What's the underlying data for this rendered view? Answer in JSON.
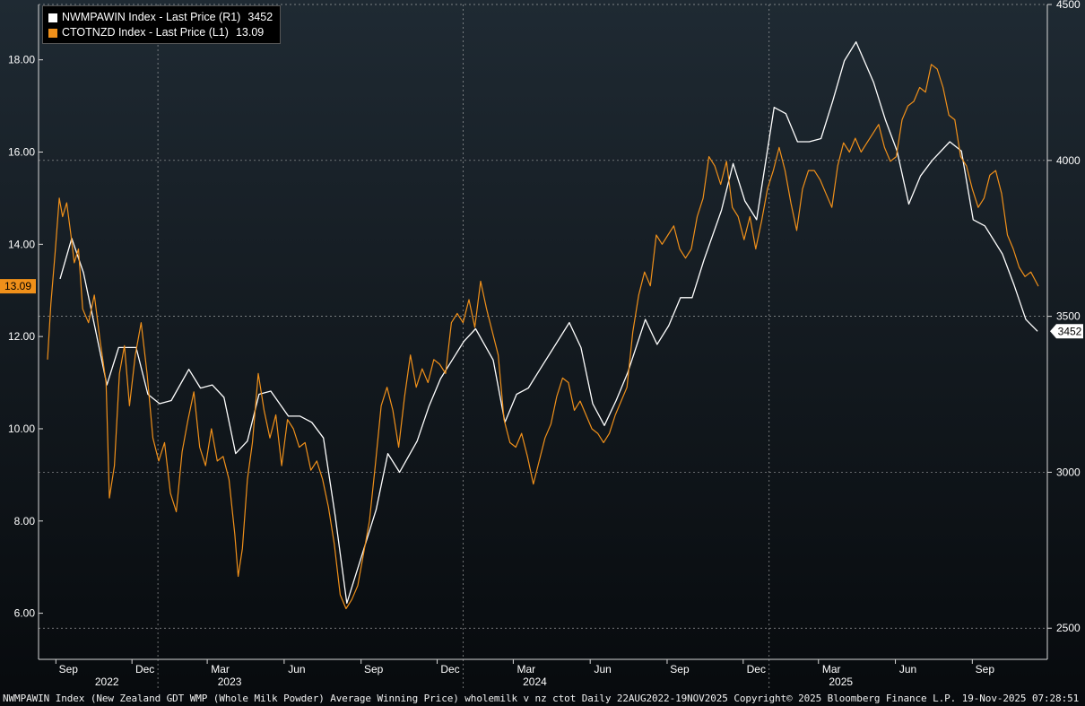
{
  "footer_text": "NWMPAWIN Index (New Zealand GDT WMP (Whole Milk Powder) Average Winning Price) wholemilk v nz ctot Daily 22AUG2022-19NOV2025 Copyright© 2025 Bloomberg Finance L.P. 19-Nov-2025 07:28:51",
  "legend": [
    {
      "label": "NWMPAWIN Index - Last Price (R1)",
      "value": "3452",
      "color": "#ffffff"
    },
    {
      "label": "CTOTNZD Index - Last Price (L1)",
      "value": "13.09",
      "color": "#f0901a"
    }
  ],
  "tags": {
    "left": "13.09",
    "right": "3452"
  },
  "chart_data": {
    "type": "line",
    "left_axis": {
      "ticks": [
        "6.00",
        "8.00",
        "10.00",
        "12.00",
        "14.00",
        "16.00",
        "18.00"
      ],
      "ylim": [
        5.0,
        19.2
      ]
    },
    "right_axis": {
      "ticks": [
        "2500",
        "3000",
        "3500",
        "4000",
        "4500"
      ],
      "ylim": [
        2400,
        4500
      ]
    },
    "x_months": [
      "Sep",
      "Dec",
      "Mar",
      "Jun",
      "Sep",
      "Dec",
      "Mar",
      "Jun",
      "Sep",
      "Dec",
      "Mar",
      "Jun",
      "Sep"
    ],
    "x_years": [
      "2022",
      "2023",
      "2024",
      "2025"
    ],
    "x_range": [
      "2022-08-22",
      "2025-11-19"
    ],
    "series": [
      {
        "name": "NWMPAWIN Index - Last Price (R1)",
        "axis": "right",
        "color": "#ffffff",
        "points": [
          [
            "2022-09-06",
            3620
          ],
          [
            "2022-09-20",
            3750
          ],
          [
            "2022-10-04",
            3640
          ],
          [
            "2022-10-18",
            3460
          ],
          [
            "2022-11-01",
            3280
          ],
          [
            "2022-11-15",
            3400
          ],
          [
            "2022-12-06",
            3400
          ],
          [
            "2022-12-20",
            3250
          ],
          [
            "2023-01-03",
            3220
          ],
          [
            "2023-01-17",
            3230
          ],
          [
            "2023-02-07",
            3330
          ],
          [
            "2023-02-21",
            3270
          ],
          [
            "2023-03-07",
            3280
          ],
          [
            "2023-03-21",
            3240
          ],
          [
            "2023-04-04",
            3060
          ],
          [
            "2023-04-18",
            3100
          ],
          [
            "2023-05-02",
            3250
          ],
          [
            "2023-05-16",
            3260
          ],
          [
            "2023-06-06",
            3180
          ],
          [
            "2023-06-20",
            3180
          ],
          [
            "2023-07-04",
            3160
          ],
          [
            "2023-07-18",
            3110
          ],
          [
            "2023-08-01",
            2860
          ],
          [
            "2023-08-15",
            2580
          ],
          [
            "2023-09-05",
            2760
          ],
          [
            "2023-09-19",
            2880
          ],
          [
            "2023-10-03",
            3060
          ],
          [
            "2023-10-17",
            3000
          ],
          [
            "2023-11-07",
            3100
          ],
          [
            "2023-11-21",
            3210
          ],
          [
            "2023-12-05",
            3300
          ],
          [
            "2023-12-19",
            3360
          ],
          [
            "2024-01-02",
            3420
          ],
          [
            "2024-01-16",
            3460
          ],
          [
            "2024-02-06",
            3360
          ],
          [
            "2024-02-20",
            3160
          ],
          [
            "2024-03-05",
            3250
          ],
          [
            "2024-03-19",
            3270
          ],
          [
            "2024-04-02",
            3330
          ],
          [
            "2024-04-16",
            3390
          ],
          [
            "2024-05-07",
            3480
          ],
          [
            "2024-05-21",
            3400
          ],
          [
            "2024-06-04",
            3220
          ],
          [
            "2024-06-18",
            3150
          ],
          [
            "2024-07-02",
            3230
          ],
          [
            "2024-07-16",
            3320
          ],
          [
            "2024-08-06",
            3490
          ],
          [
            "2024-08-20",
            3410
          ],
          [
            "2024-09-03",
            3470
          ],
          [
            "2024-09-17",
            3560
          ],
          [
            "2024-10-01",
            3560
          ],
          [
            "2024-10-15",
            3680
          ],
          [
            "2024-11-05",
            3840
          ],
          [
            "2024-11-19",
            3990
          ],
          [
            "2024-12-03",
            3870
          ],
          [
            "2024-12-17",
            3810
          ],
          [
            "2025-01-07",
            4170
          ],
          [
            "2025-01-21",
            4150
          ],
          [
            "2025-02-04",
            4060
          ],
          [
            "2025-02-18",
            4060
          ],
          [
            "2025-03-04",
            4070
          ],
          [
            "2025-03-18",
            4190
          ],
          [
            "2025-04-01",
            4320
          ],
          [
            "2025-04-15",
            4380
          ],
          [
            "2025-05-06",
            4250
          ],
          [
            "2025-05-20",
            4130
          ],
          [
            "2025-06-03",
            4030
          ],
          [
            "2025-06-17",
            3860
          ],
          [
            "2025-07-01",
            3950
          ],
          [
            "2025-07-15",
            4000
          ],
          [
            "2025-08-05",
            4060
          ],
          [
            "2025-08-19",
            4030
          ],
          [
            "2025-09-02",
            3810
          ],
          [
            "2025-09-16",
            3790
          ],
          [
            "2025-10-07",
            3700
          ],
          [
            "2025-10-21",
            3600
          ],
          [
            "2025-11-04",
            3490
          ],
          [
            "2025-11-18",
            3452
          ]
        ]
      },
      {
        "name": "CTOTNZD Index - Last Price (L1)",
        "axis": "left",
        "color": "#f0901a",
        "points": [
          [
            "2022-08-22",
            11.5
          ],
          [
            "2022-08-26",
            12.7
          ],
          [
            "2022-08-31",
            13.8
          ],
          [
            "2022-09-05",
            15.0
          ],
          [
            "2022-09-09",
            14.6
          ],
          [
            "2022-09-14",
            14.9
          ],
          [
            "2022-09-19",
            14.2
          ],
          [
            "2022-09-23",
            13.6
          ],
          [
            "2022-09-28",
            13.9
          ],
          [
            "2022-10-03",
            12.6
          ],
          [
            "2022-10-10",
            12.3
          ],
          [
            "2022-10-17",
            12.9
          ],
          [
            "2022-10-24",
            11.9
          ],
          [
            "2022-10-31",
            11.0
          ],
          [
            "2022-11-04",
            8.5
          ],
          [
            "2022-11-10",
            9.2
          ],
          [
            "2022-11-16",
            11.2
          ],
          [
            "2022-11-22",
            11.8
          ],
          [
            "2022-11-28",
            10.5
          ],
          [
            "2022-12-05",
            11.6
          ],
          [
            "2022-12-12",
            12.3
          ],
          [
            "2022-12-19",
            11.2
          ],
          [
            "2022-12-26",
            9.8
          ],
          [
            "2023-01-02",
            9.3
          ],
          [
            "2023-01-09",
            9.7
          ],
          [
            "2023-01-16",
            8.6
          ],
          [
            "2023-01-23",
            8.2
          ],
          [
            "2023-01-30",
            9.5
          ],
          [
            "2023-02-06",
            10.2
          ],
          [
            "2023-02-13",
            10.8
          ],
          [
            "2023-02-20",
            9.6
          ],
          [
            "2023-02-27",
            9.2
          ],
          [
            "2023-03-06",
            10.0
          ],
          [
            "2023-03-13",
            9.3
          ],
          [
            "2023-03-20",
            9.4
          ],
          [
            "2023-03-27",
            8.9
          ],
          [
            "2023-04-03",
            7.7
          ],
          [
            "2023-04-07",
            6.8
          ],
          [
            "2023-04-12",
            7.4
          ],
          [
            "2023-04-18",
            8.9
          ],
          [
            "2023-04-24",
            9.7
          ],
          [
            "2023-05-01",
            11.2
          ],
          [
            "2023-05-08",
            10.4
          ],
          [
            "2023-05-15",
            9.8
          ],
          [
            "2023-05-22",
            10.3
          ],
          [
            "2023-05-29",
            9.2
          ],
          [
            "2023-06-05",
            10.2
          ],
          [
            "2023-06-12",
            10.0
          ],
          [
            "2023-06-19",
            9.6
          ],
          [
            "2023-06-26",
            9.7
          ],
          [
            "2023-07-03",
            9.1
          ],
          [
            "2023-07-10",
            9.3
          ],
          [
            "2023-07-17",
            8.9
          ],
          [
            "2023-07-24",
            8.3
          ],
          [
            "2023-07-31",
            7.5
          ],
          [
            "2023-08-07",
            6.4
          ],
          [
            "2023-08-14",
            6.1
          ],
          [
            "2023-08-21",
            6.3
          ],
          [
            "2023-08-28",
            6.6
          ],
          [
            "2023-09-04",
            7.3
          ],
          [
            "2023-09-11",
            8.0
          ],
          [
            "2023-09-18",
            9.2
          ],
          [
            "2023-09-25",
            10.5
          ],
          [
            "2023-10-02",
            10.9
          ],
          [
            "2023-10-09",
            10.4
          ],
          [
            "2023-10-16",
            9.6
          ],
          [
            "2023-10-23",
            10.7
          ],
          [
            "2023-10-30",
            11.6
          ],
          [
            "2023-11-06",
            10.9
          ],
          [
            "2023-11-13",
            11.3
          ],
          [
            "2023-11-20",
            11.0
          ],
          [
            "2023-11-27",
            11.5
          ],
          [
            "2023-12-04",
            11.4
          ],
          [
            "2023-12-11",
            11.2
          ],
          [
            "2023-12-18",
            12.3
          ],
          [
            "2023-12-25",
            12.5
          ],
          [
            "2024-01-01",
            12.3
          ],
          [
            "2024-01-08",
            12.8
          ],
          [
            "2024-01-15",
            12.2
          ],
          [
            "2024-01-22",
            13.2
          ],
          [
            "2024-01-29",
            12.6
          ],
          [
            "2024-02-05",
            12.1
          ],
          [
            "2024-02-12",
            11.6
          ],
          [
            "2024-02-19",
            10.2
          ],
          [
            "2024-02-26",
            9.7
          ],
          [
            "2024-03-04",
            9.6
          ],
          [
            "2024-03-11",
            9.9
          ],
          [
            "2024-03-18",
            9.4
          ],
          [
            "2024-03-25",
            8.8
          ],
          [
            "2024-04-01",
            9.3
          ],
          [
            "2024-04-08",
            9.8
          ],
          [
            "2024-04-15",
            10.1
          ],
          [
            "2024-04-22",
            10.7
          ],
          [
            "2024-04-29",
            11.1
          ],
          [
            "2024-05-06",
            11.0
          ],
          [
            "2024-05-13",
            10.4
          ],
          [
            "2024-05-20",
            10.6
          ],
          [
            "2024-05-27",
            10.3
          ],
          [
            "2024-06-03",
            10.0
          ],
          [
            "2024-06-10",
            9.9
          ],
          [
            "2024-06-17",
            9.7
          ],
          [
            "2024-06-24",
            9.9
          ],
          [
            "2024-07-01",
            10.3
          ],
          [
            "2024-07-08",
            10.6
          ],
          [
            "2024-07-15",
            10.9
          ],
          [
            "2024-07-22",
            12.1
          ],
          [
            "2024-07-29",
            12.9
          ],
          [
            "2024-08-05",
            13.4
          ],
          [
            "2024-08-12",
            13.1
          ],
          [
            "2024-08-19",
            14.2
          ],
          [
            "2024-08-26",
            14.0
          ],
          [
            "2024-09-02",
            14.2
          ],
          [
            "2024-09-09",
            14.4
          ],
          [
            "2024-09-16",
            13.9
          ],
          [
            "2024-09-23",
            13.7
          ],
          [
            "2024-09-30",
            13.9
          ],
          [
            "2024-10-07",
            14.6
          ],
          [
            "2024-10-14",
            15.0
          ],
          [
            "2024-10-21",
            15.9
          ],
          [
            "2024-10-28",
            15.7
          ],
          [
            "2024-11-04",
            15.3
          ],
          [
            "2024-11-11",
            15.8
          ],
          [
            "2024-11-18",
            14.8
          ],
          [
            "2024-11-25",
            14.6
          ],
          [
            "2024-12-02",
            14.1
          ],
          [
            "2024-12-09",
            14.6
          ],
          [
            "2024-12-16",
            13.9
          ],
          [
            "2024-12-23",
            14.5
          ],
          [
            "2024-12-30",
            15.2
          ],
          [
            "2025-01-06",
            15.6
          ],
          [
            "2025-01-13",
            16.1
          ],
          [
            "2025-01-20",
            15.6
          ],
          [
            "2025-01-27",
            14.9
          ],
          [
            "2025-02-03",
            14.3
          ],
          [
            "2025-02-10",
            15.2
          ],
          [
            "2025-02-17",
            15.6
          ],
          [
            "2025-02-24",
            15.6
          ],
          [
            "2025-03-03",
            15.4
          ],
          [
            "2025-03-10",
            15.1
          ],
          [
            "2025-03-17",
            14.8
          ],
          [
            "2025-03-24",
            15.7
          ],
          [
            "2025-03-31",
            16.2
          ],
          [
            "2025-04-07",
            16.0
          ],
          [
            "2025-04-14",
            16.3
          ],
          [
            "2025-04-21",
            16.0
          ],
          [
            "2025-04-28",
            16.2
          ],
          [
            "2025-05-05",
            16.4
          ],
          [
            "2025-05-12",
            16.6
          ],
          [
            "2025-05-19",
            16.1
          ],
          [
            "2025-05-26",
            15.8
          ],
          [
            "2025-06-02",
            15.9
          ],
          [
            "2025-06-09",
            16.7
          ],
          [
            "2025-06-16",
            17.0
          ],
          [
            "2025-06-23",
            17.1
          ],
          [
            "2025-06-30",
            17.4
          ],
          [
            "2025-07-07",
            17.3
          ],
          [
            "2025-07-14",
            17.9
          ],
          [
            "2025-07-21",
            17.8
          ],
          [
            "2025-07-28",
            17.4
          ],
          [
            "2025-08-04",
            16.8
          ],
          [
            "2025-08-11",
            16.7
          ],
          [
            "2025-08-18",
            15.9
          ],
          [
            "2025-08-25",
            15.7
          ],
          [
            "2025-09-01",
            15.2
          ],
          [
            "2025-09-08",
            14.8
          ],
          [
            "2025-09-15",
            15.0
          ],
          [
            "2025-09-22",
            15.5
          ],
          [
            "2025-09-29",
            15.6
          ],
          [
            "2025-10-06",
            15.1
          ],
          [
            "2025-10-13",
            14.2
          ],
          [
            "2025-10-20",
            13.9
          ],
          [
            "2025-10-27",
            13.5
          ],
          [
            "2025-11-03",
            13.3
          ],
          [
            "2025-11-10",
            13.4
          ],
          [
            "2025-11-19",
            13.09
          ]
        ]
      }
    ]
  }
}
